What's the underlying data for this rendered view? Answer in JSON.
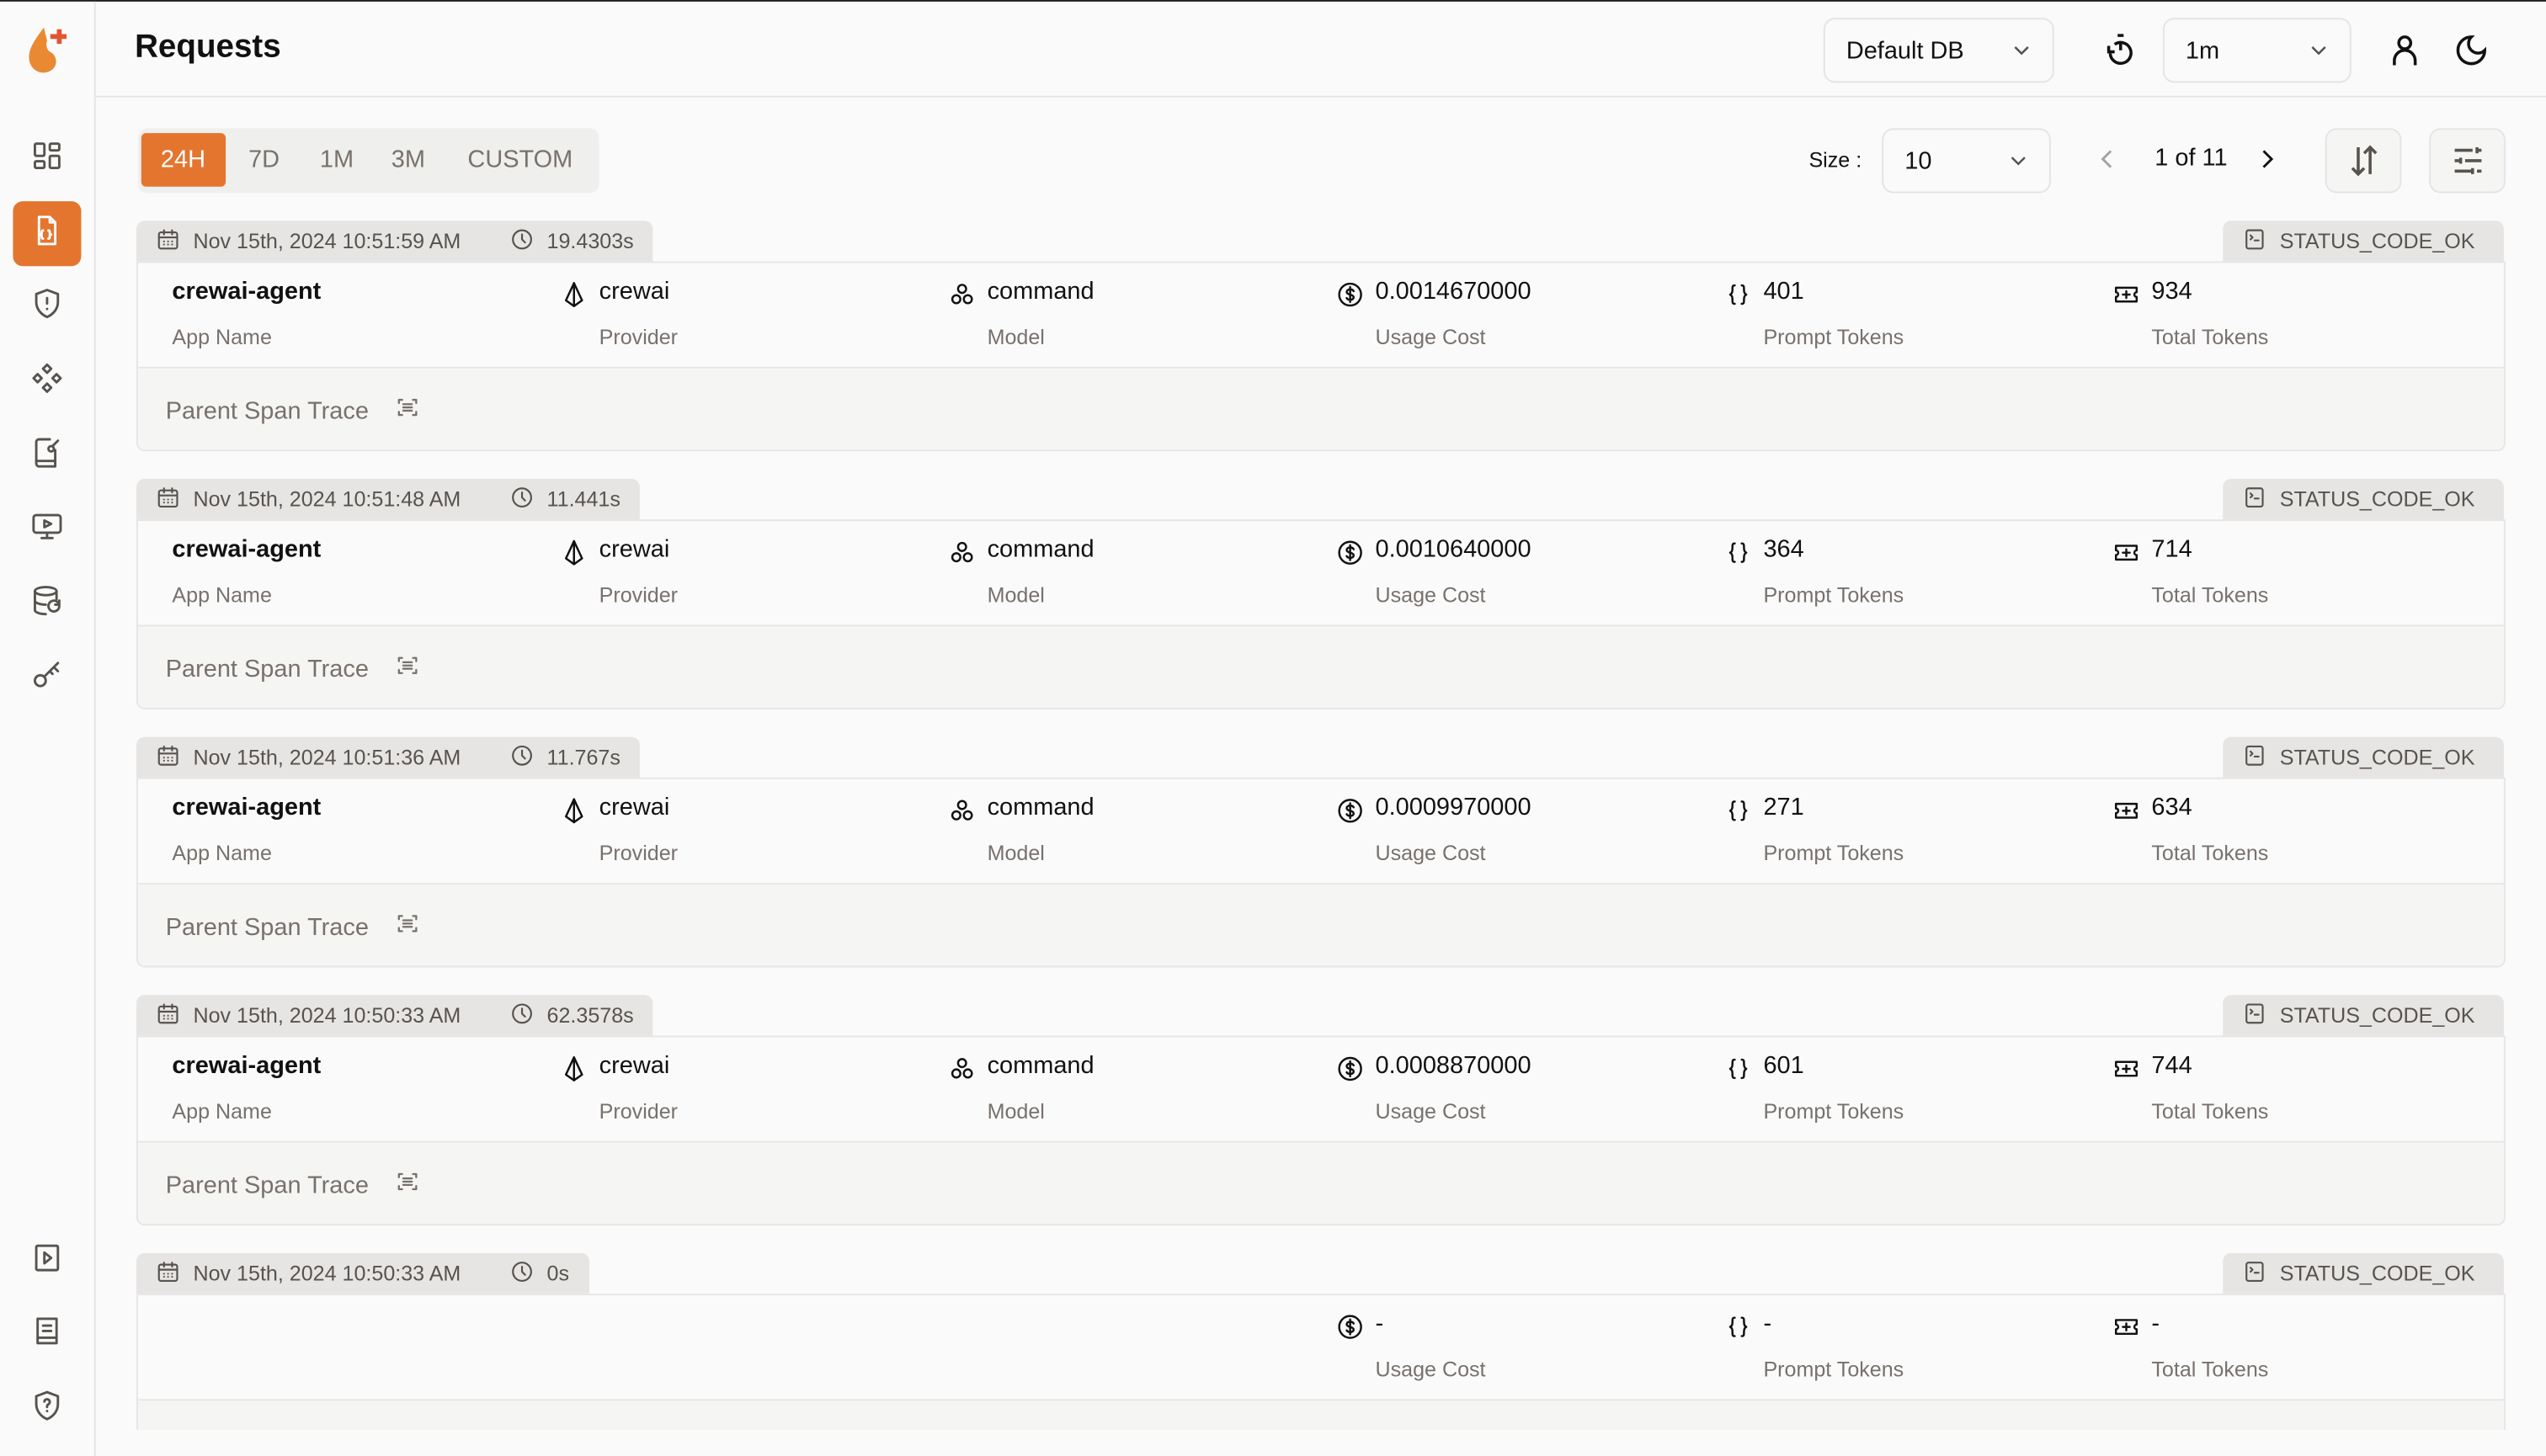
{
  "header": {
    "title": "Requests",
    "db_select": "Default DB",
    "refresh_select": "1m"
  },
  "colors": {
    "accent": "#E4752F"
  },
  "sidebar": {
    "items": [
      {
        "icon": "dashboard-icon"
      },
      {
        "icon": "requests-icon",
        "active": true
      },
      {
        "icon": "shield-alert-icon"
      },
      {
        "icon": "components-icon"
      },
      {
        "icon": "prompt-book-icon"
      },
      {
        "icon": "monitor-play-icon"
      },
      {
        "icon": "database-refresh-icon"
      },
      {
        "icon": "key-icon"
      }
    ],
    "bottom": [
      {
        "icon": "play-square-icon"
      },
      {
        "icon": "docs-book-icon"
      },
      {
        "icon": "shield-help-icon"
      }
    ]
  },
  "filters": {
    "tabs": [
      "24H",
      "7D",
      "1M",
      "3M",
      "CUSTOM"
    ],
    "active": "24H"
  },
  "pagination": {
    "size_label": "Size :",
    "size": "10",
    "page_text": "1 of 11"
  },
  "labels": {
    "app": "App Name",
    "provider": "Provider",
    "model": "Model",
    "cost": "Usage Cost",
    "prompt": "Prompt Tokens",
    "total": "Total Tokens",
    "parent": "Parent Span Trace"
  },
  "requests": [
    {
      "time": "Nov 15th, 2024 10:51:59 AM",
      "duration": "19.4303s",
      "status": "STATUS_CODE_OK",
      "app": "crewai-agent",
      "provider": "crewai",
      "model": "command",
      "cost": "0.0014670000",
      "prompt": "401",
      "total": "934"
    },
    {
      "time": "Nov 15th, 2024 10:51:48 AM",
      "duration": "11.441s",
      "status": "STATUS_CODE_OK",
      "app": "crewai-agent",
      "provider": "crewai",
      "model": "command",
      "cost": "0.0010640000",
      "prompt": "364",
      "total": "714"
    },
    {
      "time": "Nov 15th, 2024 10:51:36 AM",
      "duration": "11.767s",
      "status": "STATUS_CODE_OK",
      "app": "crewai-agent",
      "provider": "crewai",
      "model": "command",
      "cost": "0.0009970000",
      "prompt": "271",
      "total": "634"
    },
    {
      "time": "Nov 15th, 2024 10:50:33 AM",
      "duration": "62.3578s",
      "status": "STATUS_CODE_OK",
      "app": "crewai-agent",
      "provider": "crewai",
      "model": "command",
      "cost": "0.0008870000",
      "prompt": "601",
      "total": "744"
    },
    {
      "time": "Nov 15th, 2024 10:50:33 AM",
      "duration": "0s",
      "status": "STATUS_CODE_OK",
      "app": "",
      "provider": "",
      "model": "",
      "cost": "-",
      "prompt": "-",
      "total": "-"
    }
  ]
}
